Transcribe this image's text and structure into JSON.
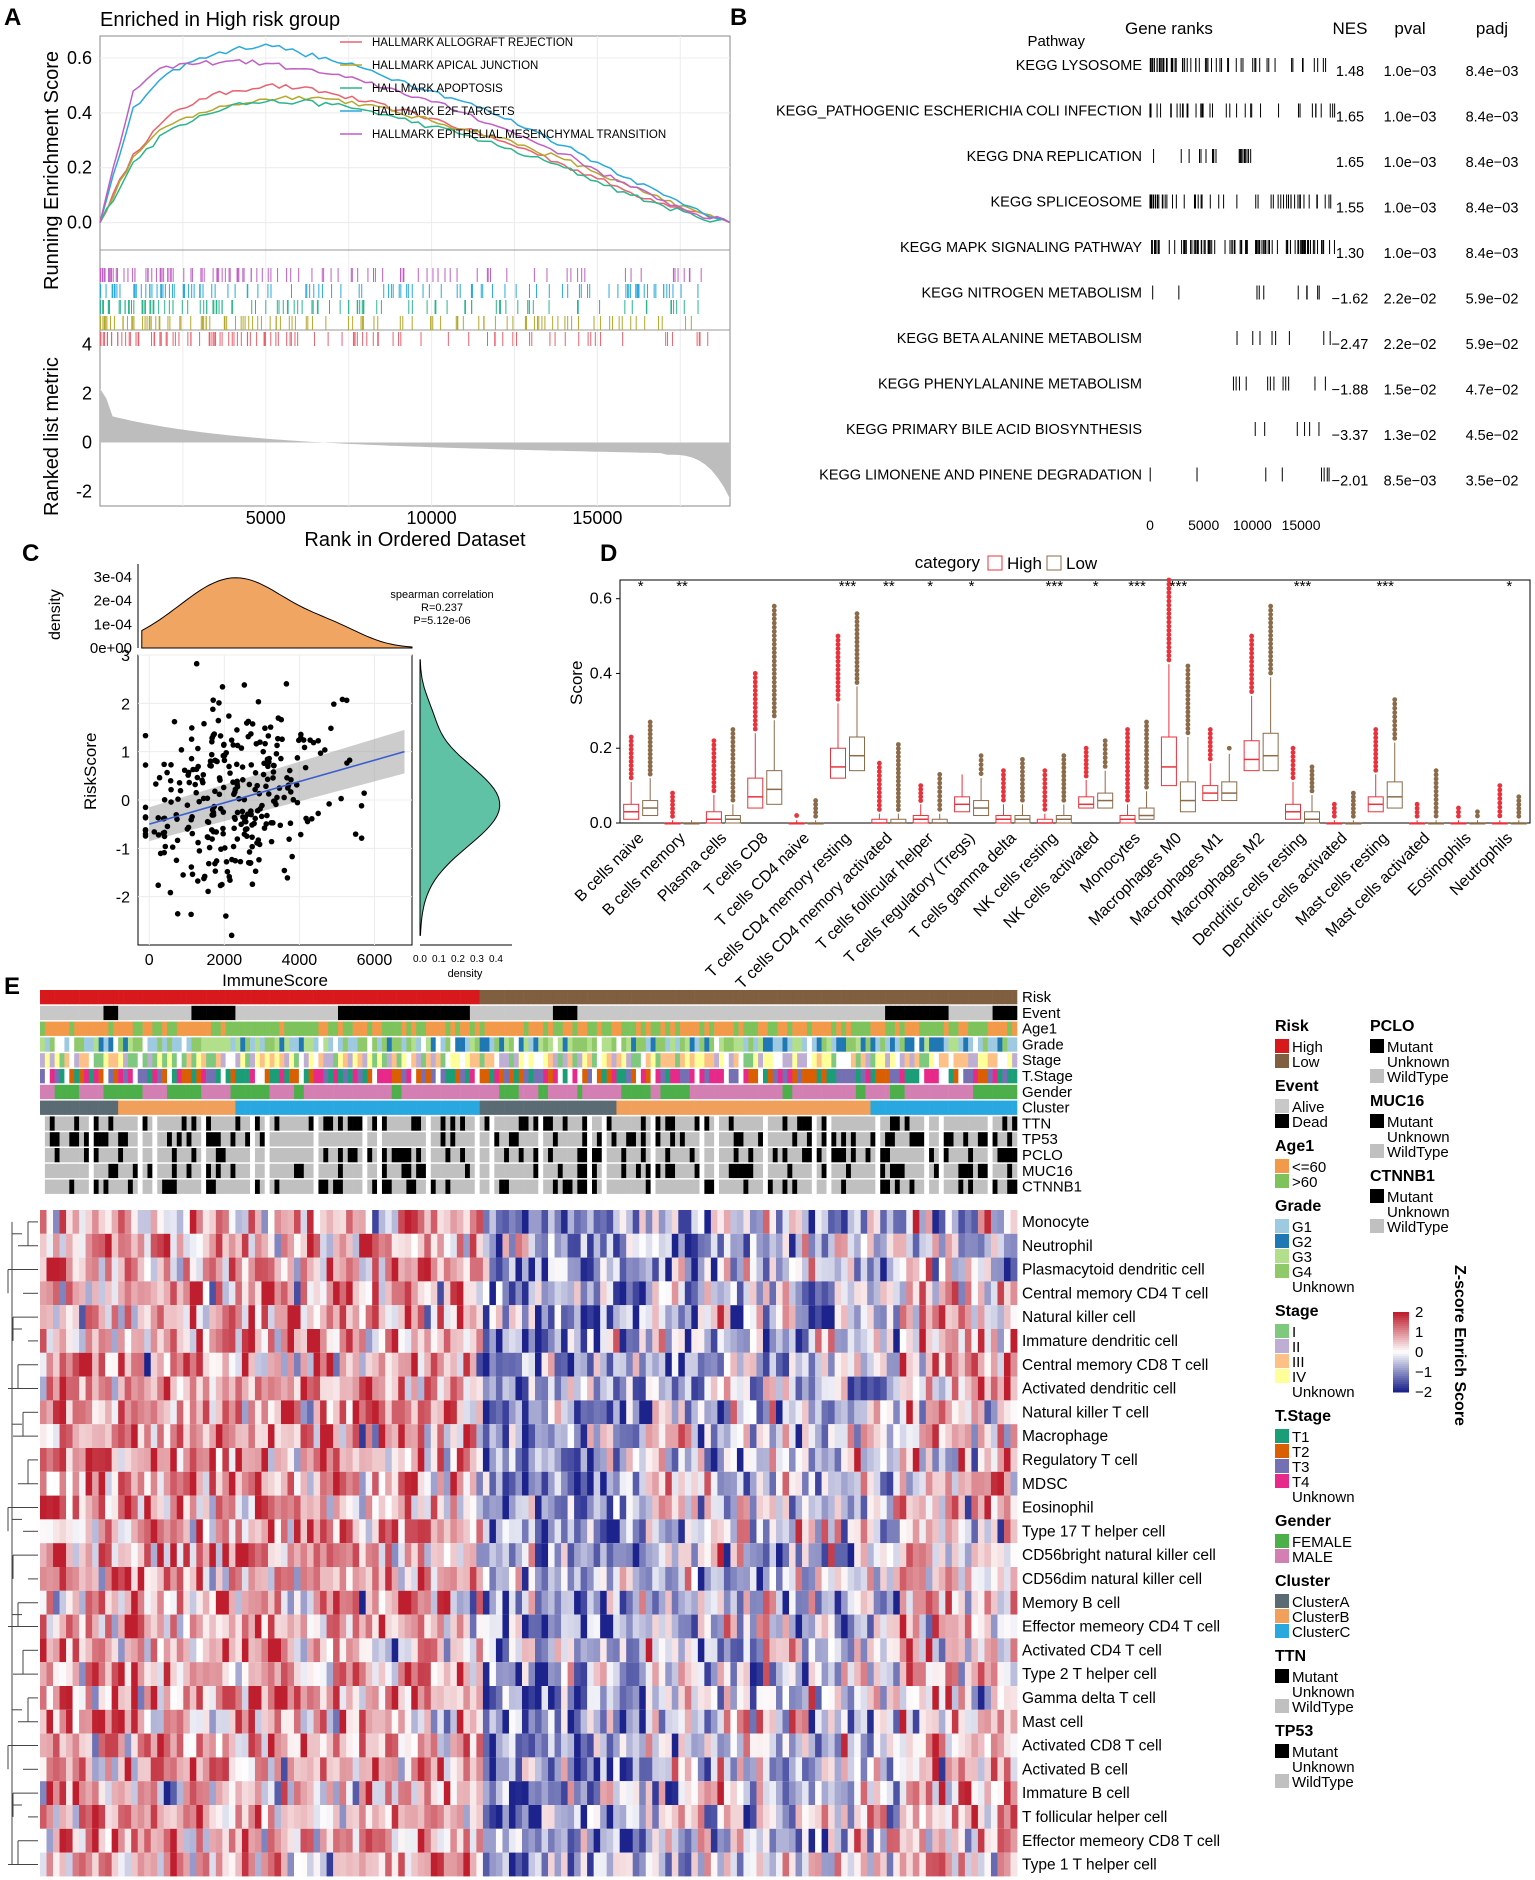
{
  "panels": {
    "a": "A",
    "b": "B",
    "c": "C",
    "d": "D",
    "e": "E"
  },
  "panelA": {
    "title": "Enriched in High risk group",
    "ylabel_top": "Running Enrichment Score",
    "ylabel_bottom": "Ranked list metric",
    "xlabel": "Rank in Ordered Dataset",
    "yticks_top": [
      "0.0",
      "0.2",
      "0.4",
      "0.6"
    ],
    "yticks_bottom": [
      "-2",
      "0",
      "2",
      "4"
    ],
    "xticks": [
      "5000",
      "10000",
      "15000"
    ],
    "legend": [
      {
        "name": "HALLMARK ALLOGRAFT REJECTION",
        "color": "#e8636f"
      },
      {
        "name": "HALLMARK APICAL JUNCTION",
        "color": "#b3a82c"
      },
      {
        "name": "HALLMARK APOPTOSIS",
        "color": "#2cb58c"
      },
      {
        "name": "HALLMARK E2F TARGETS",
        "color": "#2aa9dc"
      },
      {
        "name": "HALLMARK EPITHELIAL MESENCHYMAL TRANSITION",
        "color": "#c05fc5"
      }
    ]
  },
  "panelB": {
    "headers": {
      "pathway": "Pathway",
      "ranks": "Gene ranks",
      "nes": "NES",
      "pval": "pval",
      "padj": "padj"
    },
    "rows": [
      {
        "name": "KEGG LYSOSOME",
        "nes": "1.48",
        "pval": "1.0e−03",
        "padj": "8.4e−03"
      },
      {
        "name": "KEGG_PATHOGENIC ESCHERICHIA COLI INFECTION",
        "nes": "1.65",
        "pval": "1.0e−03",
        "padj": "8.4e−03"
      },
      {
        "name": "KEGG DNA REPLICATION",
        "nes": "1.65",
        "pval": "1.0e−03",
        "padj": "8.4e−03"
      },
      {
        "name": "KEGG SPLICEOSOME",
        "nes": "1.55",
        "pval": "1.0e−03",
        "padj": "8.4e−03"
      },
      {
        "name": "KEGG MAPK SIGNALING PATHWAY",
        "nes": "1.30",
        "pval": "1.0e−03",
        "padj": "8.4e−03"
      },
      {
        "name": "KEGG NITROGEN METABOLISM",
        "nes": "−1.62",
        "pval": "2.2e−02",
        "padj": "5.9e−02"
      },
      {
        "name": "KEGG BETA ALANINE METABOLISM",
        "nes": "−2.47",
        "pval": "2.2e−02",
        "padj": "5.9e−02"
      },
      {
        "name": "KEGG PHENYLALANINE METABOLISM",
        "nes": "−1.88",
        "pval": "1.5e−02",
        "padj": "4.7e−02"
      },
      {
        "name": "KEGG PRIMARY BILE ACID BIOSYNTHESIS",
        "nes": "−3.37",
        "pval": "1.3e−02",
        "padj": "4.5e−02"
      },
      {
        "name": "KEGG LIMONENE AND PINENE DEGRADATION",
        "nes": "−2.01",
        "pval": "8.5e−03",
        "padj": "3.5e−02"
      }
    ],
    "xticks": [
      "0",
      "5000",
      "10000",
      "15000"
    ]
  },
  "panelC": {
    "xlabel": "ImmuneScore",
    "ylabel": "RiskScore",
    "density_label": "density",
    "density_yticks": [
      "0e+00",
      "1e-04",
      "2e-04",
      "3e-04"
    ],
    "xticks": [
      "0",
      "2000",
      "4000",
      "6000"
    ],
    "yticks": [
      "-2",
      "-1",
      "0",
      "1",
      "2",
      "3"
    ],
    "side_ticks": [
      "0.0",
      "0.1",
      "0.2",
      "0.3",
      "0.4"
    ],
    "side_label": "density",
    "stats": {
      "title": "spearman correlation",
      "r": "R=0.237",
      "p": "P=5.12e-06"
    }
  },
  "panelD": {
    "legend_title": "category",
    "legend_high": "High",
    "legend_low": "Low",
    "ylabel": "Score",
    "yticks": [
      "0.0",
      "0.2",
      "0.4",
      "0.6"
    ],
    "colors": {
      "high": "#e8333c",
      "low": "#8b6b4a"
    }
  },
  "panelE": {
    "track_labels": [
      "Risk",
      "Event",
      "Age1",
      "Grade",
      "Stage",
      "T.Stage",
      "Gender",
      "Cluster",
      "TTN",
      "TP53",
      "PCLO",
      "MUC16",
      "CTNNB1"
    ],
    "rows": [
      "Monocyte",
      "Neutrophil",
      "Plasmacytoid dendritic cell",
      "Central memory CD4 T cell",
      "Natural killer cell",
      "Immature dendritic cell",
      "Central memory CD8 T cell",
      "Activated dendritic cell",
      "Natural killer T cell",
      "Macrophage",
      "Regulatory T cell",
      "MDSC",
      "Eosinophil",
      "Type 17 T helper cell",
      "CD56bright natural killer cell",
      "CD56dim natural killer cell",
      "Memory B cell",
      "Effector memeory CD4 T cell",
      "Activated CD4 T cell",
      "Type 2 T helper cell",
      "Gamma delta T cell",
      "Mast cell",
      "Activated CD8 T cell",
      "Activated B cell",
      "Immature  B cell",
      "T follicular helper cell",
      "Effector memeory CD8 T cell",
      "Type 1 T helper cell"
    ],
    "legend_col1": [
      {
        "title": "Risk",
        "items": [
          {
            "label": "High",
            "color": "#d7191c"
          },
          {
            "label": "Low",
            "color": "#7f5f3f"
          }
        ]
      },
      {
        "title": "Event",
        "items": [
          {
            "label": "Alive",
            "color": "#c8c8c8"
          },
          {
            "label": "Dead",
            "color": "#000000"
          }
        ]
      },
      {
        "title": "Age1",
        "items": [
          {
            "label": "<=60",
            "color": "#f2994a"
          },
          {
            "label": ">60",
            "color": "#7dc25b"
          }
        ]
      },
      {
        "title": "Grade",
        "items": [
          {
            "label": "G1",
            "color": "#9ecae1"
          },
          {
            "label": "G2",
            "color": "#1f78b4"
          },
          {
            "label": "G3",
            "color": "#b2df8a"
          },
          {
            "label": "G4",
            "color": "#8fc96a"
          },
          {
            "label": "Unknown",
            "color": "#ffffff"
          }
        ]
      },
      {
        "title": "Stage",
        "items": [
          {
            "label": "I",
            "color": "#7fc97f"
          },
          {
            "label": "II",
            "color": "#beaed4"
          },
          {
            "label": "III",
            "color": "#fdc086"
          },
          {
            "label": "IV",
            "color": "#ffff99"
          },
          {
            "label": "Unknown",
            "color": "#ffffff"
          }
        ]
      },
      {
        "title": "T.Stage",
        "items": [
          {
            "label": "T1",
            "color": "#1b9e77"
          },
          {
            "label": "T2",
            "color": "#d95f02"
          },
          {
            "label": "T3",
            "color": "#7570b3"
          },
          {
            "label": "T4",
            "color": "#e7298a"
          },
          {
            "label": "Unknown",
            "color": "#ffffff"
          }
        ]
      },
      {
        "title": "Gender",
        "items": [
          {
            "label": "FEMALE",
            "color": "#4daf4a"
          },
          {
            "label": "MALE",
            "color": "#d47fb4"
          }
        ]
      },
      {
        "title": "Cluster",
        "items": [
          {
            "label": "ClusterA",
            "color": "#5a6b73"
          },
          {
            "label": "ClusterB",
            "color": "#f0a05a"
          },
          {
            "label": "ClusterC",
            "color": "#29a8e0"
          }
        ]
      },
      {
        "title": "TTN",
        "items": [
          {
            "label": "Mutant",
            "color": "#000000"
          },
          {
            "label": "Unknown",
            "color": "#ffffff"
          },
          {
            "label": "WildType",
            "color": "#c0c0c0"
          }
        ]
      },
      {
        "title": "TP53",
        "items": [
          {
            "label": "Mutant",
            "color": "#000000"
          },
          {
            "label": "Unknown",
            "color": "#ffffff"
          },
          {
            "label": "WildType",
            "color": "#c0c0c0"
          }
        ]
      }
    ],
    "legend_col2": [
      {
        "title": "PCLO",
        "items": [
          {
            "label": "Mutant",
            "color": "#000000"
          },
          {
            "label": "Unknown",
            "color": "#ffffff"
          },
          {
            "label": "WildType",
            "color": "#c0c0c0"
          }
        ]
      },
      {
        "title": "MUC16",
        "items": [
          {
            "label": "Mutant",
            "color": "#000000"
          },
          {
            "label": "Unknown",
            "color": "#ffffff"
          },
          {
            "label": "WildType",
            "color": "#c0c0c0"
          }
        ]
      },
      {
        "title": "CTNNB1",
        "items": [
          {
            "label": "Mutant",
            "color": "#000000"
          },
          {
            "label": "Unknown",
            "color": "#ffffff"
          },
          {
            "label": "WildType",
            "color": "#c0c0c0"
          }
        ]
      }
    ],
    "colorbar": {
      "title": "Z-score Enrich Score",
      "ticks": [
        "2",
        "1",
        "0",
        "−1",
        "−2"
      ]
    }
  },
  "chart_data": [
    {
      "panel": "D",
      "type": "box",
      "title": "",
      "xlabel": "",
      "ylabel": "Score",
      "ylim": [
        0,
        0.65
      ],
      "categories": [
        "B cells naive",
        "B cells memory",
        "Plasma cells",
        "T cells CD8",
        "T cells CD4 naive",
        "T cells CD4 memory resting",
        "T cells CD4 memory activated",
        "T cells follicular helper",
        "T cells regulatory (Tregs)",
        "T cells gamma delta",
        "NK cells resting",
        "NK cells activated",
        "Monocytes",
        "Macrophages M0",
        "Macrophages M1",
        "Macrophages M2",
        "Dendritic cells resting",
        "Dendritic cells activated",
        "Mast cells resting",
        "Mast cells activated",
        "Eosinophils",
        "Neutrophils"
      ],
      "significance": [
        "*",
        "**",
        "",
        "",
        "",
        "***",
        "**",
        "*",
        "*",
        "",
        "***",
        "*",
        "***",
        "***",
        "",
        "",
        "***",
        "",
        "***",
        "",
        "",
        "*"
      ],
      "series": [
        {
          "name": "High",
          "median": [
            0.03,
            0.0,
            0.01,
            0.07,
            0.0,
            0.15,
            0.0,
            0.01,
            0.05,
            0.01,
            0.0,
            0.05,
            0.01,
            0.15,
            0.08,
            0.17,
            0.03,
            0.0,
            0.05,
            0.0,
            0.0,
            0.0
          ],
          "q1": [
            0.01,
            0.0,
            0.0,
            0.04,
            0.0,
            0.12,
            0.0,
            0.0,
            0.03,
            0.0,
            0.0,
            0.04,
            0.0,
            0.1,
            0.06,
            0.14,
            0.01,
            0.0,
            0.03,
            0.0,
            0.0,
            0.0
          ],
          "q3": [
            0.05,
            0.0,
            0.03,
            0.12,
            0.0,
            0.2,
            0.01,
            0.02,
            0.07,
            0.02,
            0.01,
            0.07,
            0.02,
            0.23,
            0.1,
            0.22,
            0.05,
            0.0,
            0.07,
            0.0,
            0.0,
            0.0
          ],
          "max": [
            0.23,
            0.08,
            0.22,
            0.4,
            0.02,
            0.5,
            0.16,
            0.1,
            0.13,
            0.14,
            0.14,
            0.2,
            0.25,
            0.65,
            0.25,
            0.5,
            0.2,
            0.05,
            0.25,
            0.05,
            0.04,
            0.1
          ]
        },
        {
          "name": "Low",
          "median": [
            0.04,
            0.0,
            0.01,
            0.09,
            0.0,
            0.18,
            0.0,
            0.0,
            0.04,
            0.01,
            0.01,
            0.06,
            0.02,
            0.06,
            0.08,
            0.18,
            0.01,
            0.0,
            0.07,
            0.0,
            0.0,
            0.0
          ],
          "q1": [
            0.02,
            0.0,
            0.0,
            0.05,
            0.0,
            0.14,
            0.0,
            0.0,
            0.02,
            0.0,
            0.0,
            0.04,
            0.01,
            0.03,
            0.06,
            0.14,
            0.0,
            0.0,
            0.04,
            0.0,
            0.0,
            0.0
          ],
          "q3": [
            0.06,
            0.0,
            0.02,
            0.14,
            0.0,
            0.23,
            0.01,
            0.01,
            0.06,
            0.02,
            0.02,
            0.08,
            0.04,
            0.11,
            0.11,
            0.24,
            0.03,
            0.0,
            0.11,
            0.0,
            0.0,
            0.0
          ],
          "max": [
            0.27,
            0.01,
            0.25,
            0.58,
            0.06,
            0.56,
            0.21,
            0.13,
            0.18,
            0.17,
            0.18,
            0.22,
            0.27,
            0.42,
            0.2,
            0.58,
            0.15,
            0.08,
            0.33,
            0.14,
            0.03,
            0.07
          ]
        }
      ]
    },
    {
      "panel": "A",
      "type": "line",
      "title": "Enriched in High risk group",
      "xlabel": "Rank in Ordered Dataset",
      "ylabel": "Running Enrichment Score",
      "xlim": [
        0,
        19000
      ],
      "ylim": [
        -0.1,
        0.68
      ],
      "x": [
        0,
        1000,
        2000,
        3000,
        4000,
        5000,
        6000,
        7000,
        8000,
        9000,
        10000,
        11000,
        12000,
        13000,
        14000,
        15000,
        16000,
        17000,
        18000,
        19000
      ],
      "series": [
        {
          "name": "HALLMARK ALLOGRAFT REJECTION",
          "values": [
            0,
            0.25,
            0.38,
            0.45,
            0.48,
            0.5,
            0.49,
            0.47,
            0.44,
            0.41,
            0.38,
            0.34,
            0.3,
            0.26,
            0.21,
            0.16,
            0.11,
            0.07,
            0.04,
            0.0
          ]
        },
        {
          "name": "HALLMARK APICAL JUNCTION",
          "values": [
            0,
            0.24,
            0.35,
            0.4,
            0.43,
            0.45,
            0.46,
            0.45,
            0.43,
            0.4,
            0.37,
            0.34,
            0.31,
            0.27,
            0.23,
            0.18,
            0.13,
            0.08,
            0.04,
            0.0
          ]
        },
        {
          "name": "HALLMARK APOPTOSIS",
          "values": [
            0,
            0.22,
            0.33,
            0.39,
            0.43,
            0.44,
            0.44,
            0.43,
            0.41,
            0.38,
            0.35,
            0.32,
            0.28,
            0.24,
            0.2,
            0.15,
            0.1,
            0.06,
            0.02,
            0.0
          ]
        },
        {
          "name": "HALLMARK E2F TARGETS",
          "values": [
            0,
            0.42,
            0.54,
            0.6,
            0.63,
            0.65,
            0.62,
            0.59,
            0.56,
            0.52,
            0.48,
            0.44,
            0.39,
            0.34,
            0.28,
            0.22,
            0.16,
            0.1,
            0.05,
            0.0
          ]
        },
        {
          "name": "HALLMARK EPITHELIAL MESENCHYMAL TRANSITION",
          "values": [
            0,
            0.48,
            0.57,
            0.58,
            0.59,
            0.58,
            0.56,
            0.54,
            0.51,
            0.48,
            0.44,
            0.4,
            0.35,
            0.3,
            0.25,
            0.19,
            0.13,
            0.08,
            0.03,
            0.0
          ]
        }
      ]
    },
    {
      "panel": "C",
      "type": "scatter",
      "title": "",
      "xlabel": "ImmuneScore",
      "ylabel": "RiskScore",
      "xlim": [
        -300,
        7000
      ],
      "ylim": [
        -3,
        3
      ],
      "annotations": [
        "spearman correlation",
        "R=0.237",
        "P=5.12e-06"
      ],
      "fit": {
        "x": [
          0,
          6800
        ],
        "y": [
          -0.5,
          1.0
        ]
      }
    }
  ]
}
